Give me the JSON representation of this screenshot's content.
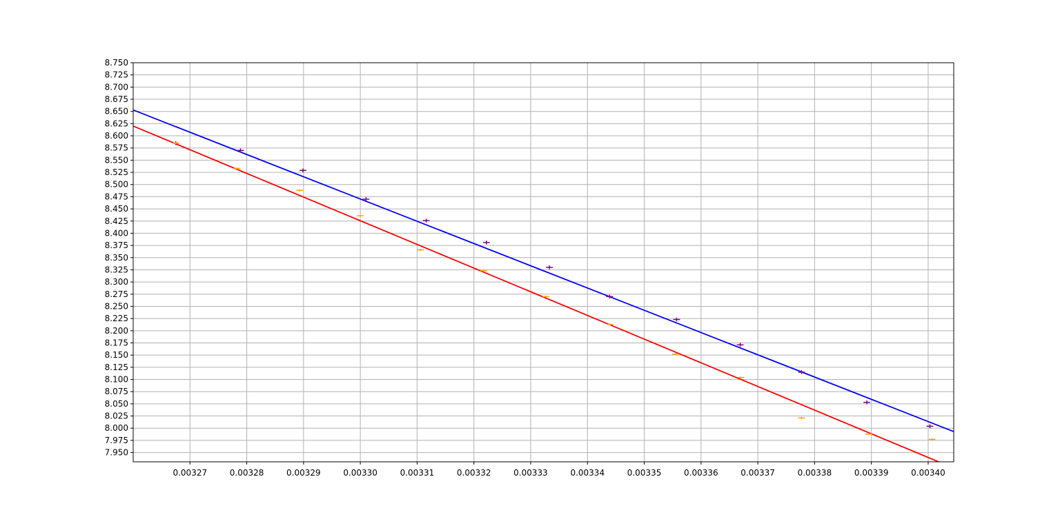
{
  "chart_data": {
    "type": "scatter",
    "title": "",
    "xlabel": "",
    "ylabel": "",
    "xlim": [
      0.00326,
      0.0034045
    ],
    "ylim": [
      7.931,
      8.75
    ],
    "grid": true,
    "legend": "none",
    "xticks": [
      0.00327,
      0.00328,
      0.00329,
      0.0033,
      0.00331,
      0.00332,
      0.00333,
      0.00334,
      0.00335,
      0.00336,
      0.00337,
      0.00338,
      0.00339,
      0.0034
    ],
    "xtick_labels": [
      "0.00327",
      "0.00328",
      "0.00329",
      "0.00330",
      "0.00331",
      "0.00332",
      "0.00333",
      "0.00334",
      "0.00335",
      "0.00336",
      "0.00337",
      "0.00338",
      "0.00339",
      "0.00340"
    ],
    "yticks": [
      7.95,
      7.975,
      8.0,
      8.025,
      8.05,
      8.075,
      8.1,
      8.125,
      8.15,
      8.175,
      8.2,
      8.225,
      8.25,
      8.275,
      8.3,
      8.325,
      8.35,
      8.375,
      8.4,
      8.425,
      8.45,
      8.475,
      8.5,
      8.525,
      8.55,
      8.575,
      8.6,
      8.625,
      8.65,
      8.675,
      8.7,
      8.725,
      8.75
    ],
    "ytick_labels": [
      "7.950",
      "7.975",
      "8.000",
      "8.025",
      "8.050",
      "8.075",
      "8.100",
      "8.125",
      "8.150",
      "8.175",
      "8.200",
      "8.225",
      "8.250",
      "8.275",
      "8.300",
      "8.325",
      "8.350",
      "8.375",
      "8.400",
      "8.425",
      "8.450",
      "8.475",
      "8.500",
      "8.525",
      "8.550",
      "8.575",
      "8.600",
      "8.625",
      "8.650",
      "8.675",
      "8.700",
      "8.725",
      "8.750"
    ],
    "series": [
      {
        "kind": "errorbar",
        "color": "#800080",
        "x": [
          0.0032675,
          0.0032789,
          0.0032899,
          0.003301,
          0.0033116,
          0.0033222,
          0.0033333,
          0.0033439,
          0.0033557,
          0.0033669,
          0.0033777,
          0.0033892,
          0.0034003
        ],
        "y": [
          8.585,
          8.57,
          8.529,
          8.47,
          8.426,
          8.381,
          8.33,
          8.27,
          8.223,
          8.171,
          8.115,
          8.053,
          8.004
        ],
        "xerr": 6e-07,
        "yerr": 0.004
      },
      {
        "kind": "errorbar",
        "color": "#ffa500",
        "x": [
          0.0032675,
          0.0032783,
          0.0032893,
          0.0033,
          0.0033106,
          0.0033217,
          0.0033327,
          0.003344,
          0.0033555,
          0.003367,
          0.0033777,
          0.0033895,
          0.0034007
        ],
        "y": [
          8.585,
          8.533,
          8.488,
          8.436,
          8.366,
          8.323,
          8.27,
          8.213,
          8.152,
          8.104,
          8.021,
          7.988,
          7.977
        ],
        "xerr": 6e-07,
        "yerr": 0.002
      },
      {
        "kind": "line",
        "color": "#0000ff",
        "x": [
          0.00326,
          0.0034045
        ],
        "y": [
          8.653,
          7.993
        ]
      },
      {
        "kind": "line",
        "color": "#ff0000",
        "x": [
          0.00326,
          0.0034045
        ],
        "y": [
          8.62,
          7.918
        ]
      }
    ]
  }
}
